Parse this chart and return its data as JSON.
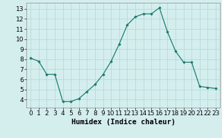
{
  "x": [
    0,
    1,
    2,
    3,
    4,
    5,
    6,
    7,
    8,
    9,
    10,
    11,
    12,
    13,
    14,
    15,
    16,
    17,
    18,
    19,
    20,
    21,
    22,
    23
  ],
  "y": [
    8.1,
    7.8,
    6.5,
    6.5,
    3.8,
    3.8,
    4.1,
    4.8,
    5.5,
    6.5,
    7.8,
    9.5,
    11.4,
    12.2,
    12.5,
    12.5,
    13.1,
    10.7,
    8.8,
    7.7,
    7.7,
    5.3,
    5.2,
    5.1
  ],
  "xlabel": "Humidex (Indice chaleur)",
  "xlim": [
    -0.5,
    23.5
  ],
  "ylim": [
    3.2,
    13.6
  ],
  "yticks": [
    4,
    5,
    6,
    7,
    8,
    9,
    10,
    11,
    12,
    13
  ],
  "xticks": [
    0,
    1,
    2,
    3,
    4,
    5,
    6,
    7,
    8,
    9,
    10,
    11,
    12,
    13,
    14,
    15,
    16,
    17,
    18,
    19,
    20,
    21,
    22,
    23
  ],
  "line_color": "#1a7a6e",
  "marker": "D",
  "marker_size": 1.8,
  "bg_color": "#d4eeee",
  "grid_color": "#b8d8d8",
  "xlabel_fontsize": 7.5,
  "tick_fontsize": 6.5
}
